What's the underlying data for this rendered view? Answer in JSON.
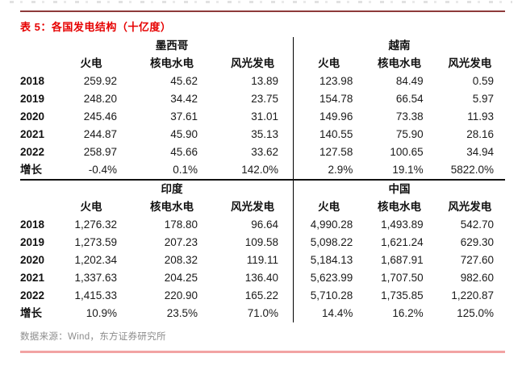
{
  "header": {
    "title": "表 5：各国发电结构（十亿度）"
  },
  "table": {
    "column_headers": [
      "火电",
      "核电水电",
      "风光发电"
    ],
    "sections": [
      {
        "left_country": "墨西哥",
        "right_country": "越南",
        "rows": [
          {
            "label": "2018",
            "left": [
              "259.92",
              "45.62",
              "13.89"
            ],
            "right": [
              "123.98",
              "84.49",
              "0.59"
            ]
          },
          {
            "label": "2019",
            "left": [
              "248.20",
              "34.42",
              "23.75"
            ],
            "right": [
              "154.78",
              "66.54",
              "5.97"
            ]
          },
          {
            "label": "2020",
            "left": [
              "245.46",
              "37.61",
              "31.01"
            ],
            "right": [
              "149.96",
              "73.38",
              "11.93"
            ]
          },
          {
            "label": "2021",
            "left": [
              "244.87",
              "45.90",
              "35.13"
            ],
            "right": [
              "140.55",
              "75.90",
              "28.16"
            ]
          },
          {
            "label": "2022",
            "left": [
              "258.97",
              "45.66",
              "33.62"
            ],
            "right": [
              "127.58",
              "100.65",
              "34.94"
            ]
          },
          {
            "label": "增长",
            "left": [
              "-0.4%",
              "0.1%",
              "142.0%"
            ],
            "right": [
              "2.9%",
              "19.1%",
              "5822.0%"
            ]
          }
        ]
      },
      {
        "left_country": "印度",
        "right_country": "中国",
        "rows": [
          {
            "label": "2018",
            "left": [
              "1,276.32",
              "178.80",
              "96.64"
            ],
            "right": [
              "4,990.28",
              "1,493.89",
              "542.70"
            ]
          },
          {
            "label": "2019",
            "left": [
              "1,273.59",
              "207.23",
              "109.58"
            ],
            "right": [
              "5,098.22",
              "1,621.24",
              "629.30"
            ]
          },
          {
            "label": "2020",
            "left": [
              "1,202.34",
              "208.32",
              "119.11"
            ],
            "right": [
              "5,184.13",
              "1,687.91",
              "727.60"
            ]
          },
          {
            "label": "2021",
            "left": [
              "1,337.63",
              "204.25",
              "136.40"
            ],
            "right": [
              "5,623.99",
              "1,707.50",
              "982.60"
            ]
          },
          {
            "label": "2022",
            "left": [
              "1,415.33",
              "220.90",
              "165.22"
            ],
            "right": [
              "5,710.28",
              "1,735.85",
              "1,220.87"
            ]
          },
          {
            "label": "增长",
            "left": [
              "10.9%",
              "23.5%",
              "71.0%"
            ],
            "right": [
              "14.4%",
              "16.2%",
              "125.0%"
            ]
          }
        ]
      }
    ]
  },
  "footer": {
    "source": "数据来源：Wind，东方证券研究所"
  },
  "colors": {
    "title_red": "#e60000",
    "top_rule": "#8e3a3a",
    "section_rule": "#111111",
    "bottom_rule": "#f2a3a3",
    "source_gray": "#8c8c8c"
  }
}
